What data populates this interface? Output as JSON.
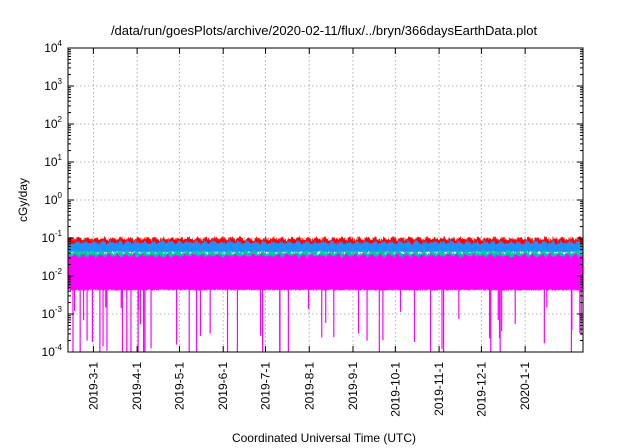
{
  "chart_data": {
    "type": "line",
    "title": "/data/run/goesPlots/archive/2020-02-11/flux/../bryn/366daysEarthData.plot",
    "xlabel": "Coordinated Universal Time (UTC)",
    "ylabel": "cGy/day",
    "y_scale": "log",
    "ylim": [
      0.0001,
      10000
    ],
    "xlim": [
      "2019-02-11",
      "2020-02-11"
    ],
    "y_ticks": [
      {
        "value": 0.0001,
        "base": "10",
        "exp": "-4"
      },
      {
        "value": 0.001,
        "base": "10",
        "exp": "-3"
      },
      {
        "value": 0.01,
        "base": "10",
        "exp": "-2"
      },
      {
        "value": 0.1,
        "base": "10",
        "exp": "-1"
      },
      {
        "value": 1,
        "base": "10",
        "exp": "0"
      },
      {
        "value": 10,
        "base": "10",
        "exp": "1"
      },
      {
        "value": 100,
        "base": "10",
        "exp": "2"
      },
      {
        "value": 1000,
        "base": "10",
        "exp": "3"
      },
      {
        "value": 10000,
        "base": "10",
        "exp": "4"
      }
    ],
    "x_ticks": [
      {
        "date": "2019-03-01",
        "label": "2019-3-1"
      },
      {
        "date": "2019-04-01",
        "label": "2019-4-1"
      },
      {
        "date": "2019-05-01",
        "label": "2019-5-1"
      },
      {
        "date": "2019-06-01",
        "label": "2019-6-1"
      },
      {
        "date": "2019-07-01",
        "label": "2019-7-1"
      },
      {
        "date": "2019-08-01",
        "label": "2019-8-1"
      },
      {
        "date": "2019-09-01",
        "label": "2019-9-1"
      },
      {
        "date": "2019-10-01",
        "label": "2019-10-1"
      },
      {
        "date": "2019-11-01",
        "label": "2019-11-1"
      },
      {
        "date": "2019-12-01",
        "label": "2019-12-1"
      },
      {
        "date": "2020-01-01",
        "label": "2020-1-1"
      }
    ],
    "grid": true,
    "series": [
      {
        "color": "#ff0000",
        "upper": 0.095,
        "lower": 0.07
      },
      {
        "color": "#1e90ff",
        "upper": 0.075,
        "lower": 0.045
      },
      {
        "color": "#00c8a0",
        "upper": 0.042,
        "lower": 0.03
      },
      {
        "color": "#ff00ff",
        "upper": 0.034,
        "lower": 0.0045,
        "dropout_to": 0.0001
      }
    ],
    "colors": {
      "red": "#ff0000",
      "blue": "#1e90ff",
      "green": "#00c8a0",
      "magenta": "#ff00ff"
    }
  }
}
